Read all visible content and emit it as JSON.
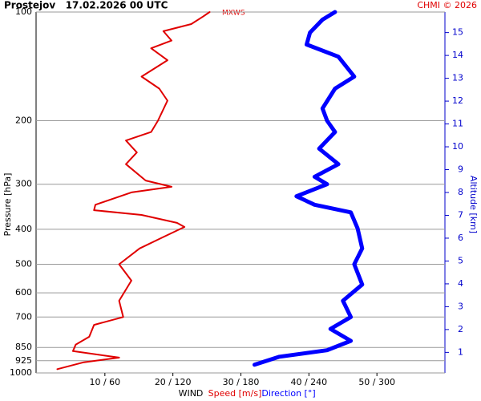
{
  "chart_data": {
    "type": "profile",
    "title": "Prostejov   17.02.2026 00 UTC",
    "credit": "CHMI © 2026",
    "annotation": "MXWS",
    "x_label": "WIND",
    "y_label": "Pressure [hPa]",
    "y2_label": "Altitude [km]",
    "log_y": true,
    "grid": true,
    "ylim": [
      1000,
      100
    ],
    "yticks": [
      100,
      200,
      300,
      400,
      500,
      600,
      700,
      850,
      925,
      1000
    ],
    "xlim": [
      0,
      60
    ],
    "x2lim": [
      0,
      360
    ],
    "xticks": [
      {
        "value": 10,
        "label": "10 / 60"
      },
      {
        "value": 20,
        "label": "20 / 120"
      },
      {
        "value": 30,
        "label": "30 / 180"
      },
      {
        "value": 40,
        "label": "40 / 240"
      },
      {
        "value": 50,
        "label": "50 / 300"
      }
    ],
    "y2lim": [
      0.1,
      15.9
    ],
    "y2ticks": [
      1,
      2,
      3,
      4,
      5,
      6,
      7,
      8,
      9,
      10,
      11,
      12,
      13,
      14,
      15
    ],
    "series": [
      {
        "name": "Speed [m/s]",
        "color": "#e00000",
        "axis": "x",
        "y": [
          100,
          103,
          108,
          113,
          120,
          126,
          136,
          151,
          163,
          176,
          200,
          215,
          227,
          245,
          264,
          293,
          305,
          316,
          342,
          354,
          365,
          384,
          394,
          420,
          452,
          500,
          555,
          631,
          700,
          736,
          794,
          835,
          870,
          907,
          934,
          976
        ],
        "values": [
          25.4,
          24.4,
          22.7,
          18.6,
          19.8,
          16.8,
          19.2,
          15.4,
          18.0,
          19.2,
          17.8,
          16.8,
          13.1,
          14.7,
          13.1,
          16.0,
          19.8,
          13.9,
          8.6,
          8.4,
          15.4,
          20.6,
          21.7,
          18.6,
          15.1,
          12.1,
          13.9,
          12.1,
          12.7,
          8.4,
          7.7,
          5.7,
          5.3,
          12.1,
          6.9,
          3.0
        ]
      },
      {
        "name": "Direction [°]",
        "color": "#0000ff",
        "axis": "x2",
        "y": [
          100,
          105,
          114,
          123,
          133,
          151,
          163,
          185,
          200,
          215,
          239,
          264,
          286,
          300,
          324,
          342,
          359,
          398,
          452,
          500,
          569,
          631,
          700,
          755,
          815,
          865,
          902,
          949
        ],
        "values": [
          263,
          252,
          241,
          238,
          266,
          280,
          263,
          252,
          256,
          263,
          249,
          266,
          245,
          256,
          229,
          245,
          277,
          283,
          287,
          280,
          287,
          270,
          277,
          259,
          277,
          256,
          214,
          192
        ]
      }
    ]
  }
}
